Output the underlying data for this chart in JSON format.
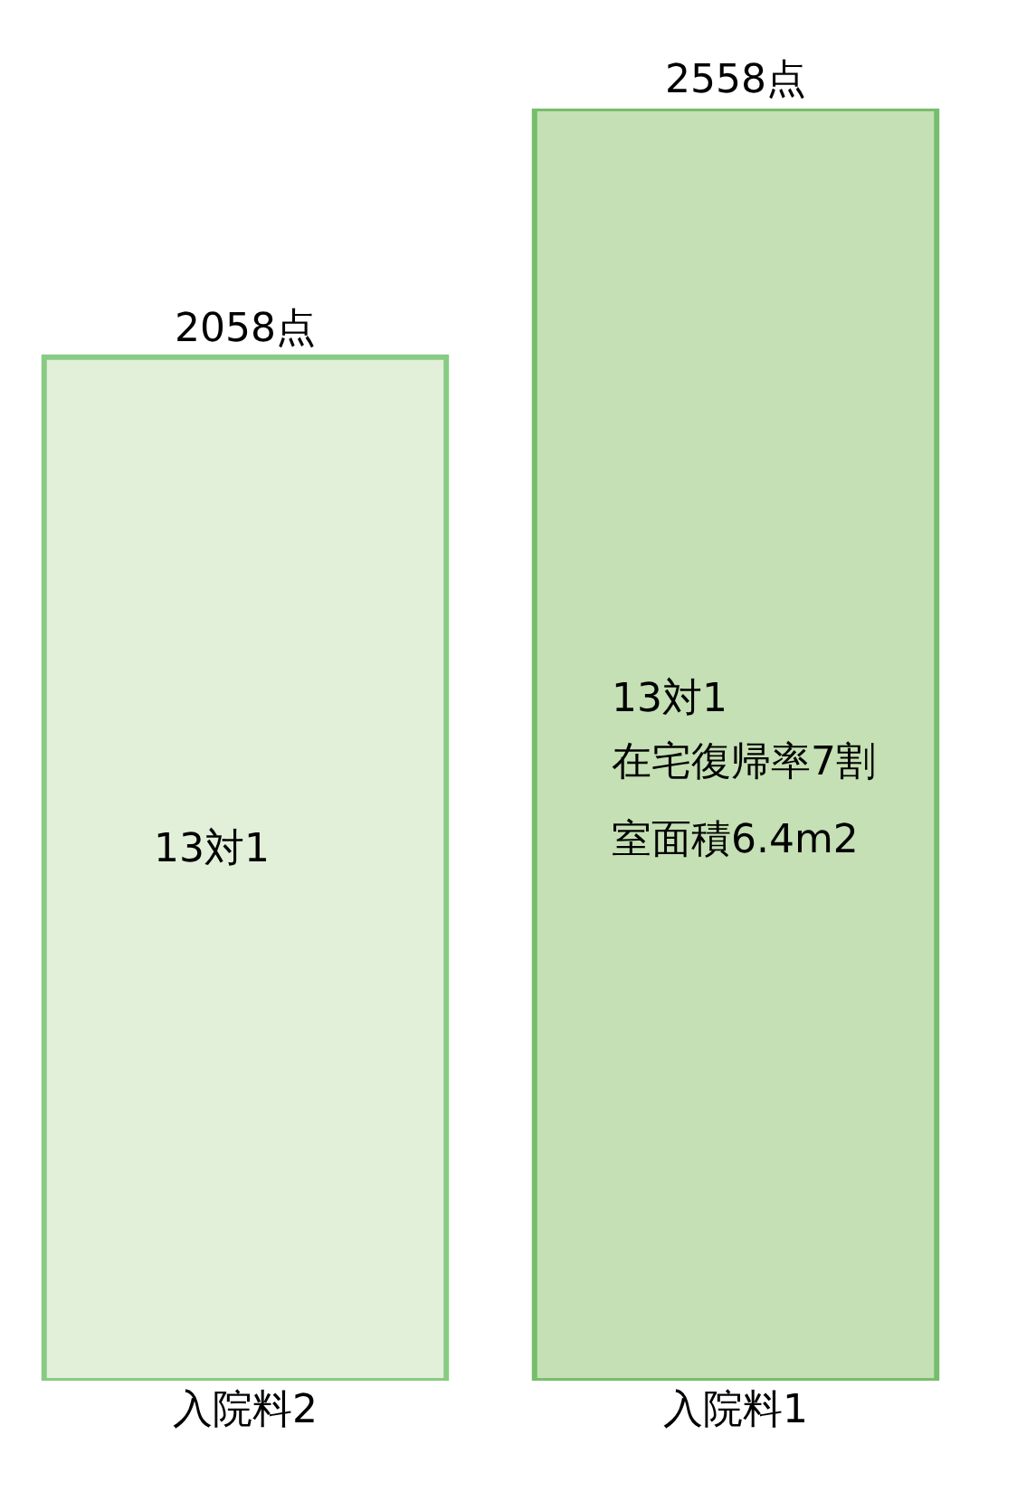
{
  "chart_data": {
    "type": "bar",
    "categories": [
      "入院料2",
      "入院料1"
    ],
    "values": [
      2058,
      2558
    ],
    "value_labels": [
      "2058点",
      "2558点"
    ],
    "colors": [
      "#e2efd9",
      "#c5e0b4"
    ],
    "ylim": [
      0,
      2558
    ],
    "annotations": [
      "13対1",
      "13対1",
      "在宅復帰率7割",
      "室面積6.4m2"
    ]
  }
}
